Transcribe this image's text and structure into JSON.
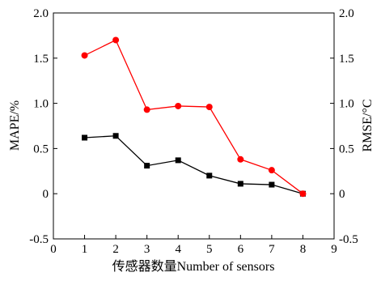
{
  "chart_data": {
    "type": "line",
    "xlabel": "传感器数量Number of sensors",
    "ylabel_left": "MAPE/%",
    "ylabel_right": "RMSE/°C",
    "xlim": [
      0,
      9
    ],
    "ylim_left": [
      -0.5,
      2.0
    ],
    "ylim_right": [
      -0.5,
      2.0
    ],
    "x_ticks": [
      "0",
      "1",
      "2",
      "3",
      "4",
      "5",
      "6",
      "7",
      "8",
      "9"
    ],
    "y_ticks_left": [
      "-0.5",
      "0",
      "0.5",
      "1.0",
      "1.5",
      "2.0"
    ],
    "y_ticks_right": [
      "-0.5",
      "0",
      "0.5",
      "1.0",
      "1.5",
      "2.0"
    ],
    "grid": false,
    "x": [
      1,
      2,
      3,
      4,
      5,
      6,
      7,
      8
    ],
    "series": [
      {
        "axis": "left",
        "marker": "square",
        "color": "#000000",
        "values": [
          0.62,
          0.64,
          0.31,
          0.37,
          0.2,
          0.11,
          0.1,
          0.0
        ]
      },
      {
        "axis": "right",
        "marker": "circle",
        "color": "#ff0000",
        "values": [
          1.53,
          1.7,
          0.93,
          0.97,
          0.96,
          0.38,
          0.26,
          0.0
        ]
      }
    ]
  }
}
